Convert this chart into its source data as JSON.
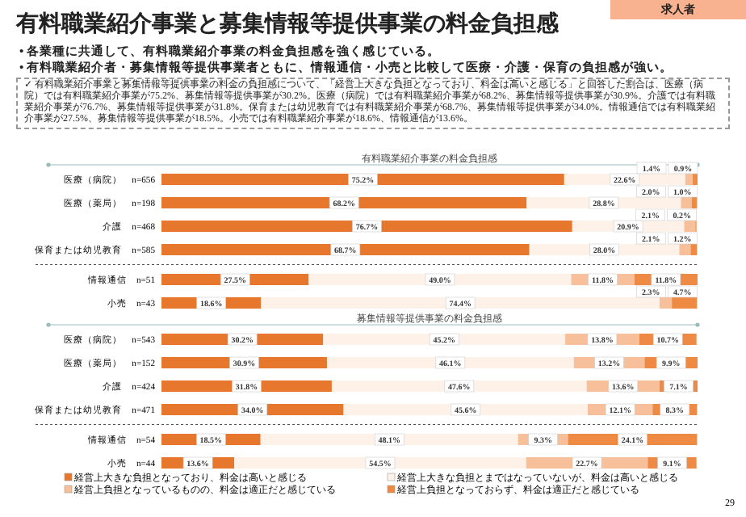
{
  "chart_data": [
    {
      "type": "bar",
      "orientation": "horizontal",
      "stacked": true,
      "title": "有料職業紹介事業の料金負担感",
      "tick_labels": "y",
      "categories": [
        "医療（病院）　n=656",
        "医療（薬局）　n=198",
        "介護　n=468",
        "保育または幼児教育　n=585",
        "情報通信　n=51",
        "小売　n=43"
      ],
      "series": [
        {
          "color": "#e8772e",
          "values": [
            75.2,
            68.2,
            76.7,
            68.7,
            27.5,
            18.6
          ],
          "value_labels": [
            "75.2%",
            "68.2%",
            "76.7%",
            "68.7%",
            "27.5%",
            "18.6%"
          ]
        },
        {
          "color": "#fdf1e8",
          "values": [
            22.6,
            28.8,
            20.9,
            28.0,
            49.0,
            74.4
          ],
          "value_labels": [
            "22.6%",
            "28.8%",
            "20.9%",
            "28.0%",
            "49.0%",
            "74.4%"
          ]
        },
        {
          "color": "#f7c09a",
          "values": [
            1.4,
            2.0,
            2.1,
            2.1,
            11.8,
            2.3
          ],
          "value_labels": [
            "1.4%",
            "2.0%",
            "2.1%",
            "2.1%",
            "11.8%",
            "2.3%"
          ]
        },
        {
          "color": "#ef8a45",
          "values": [
            0.9,
            1.0,
            0.2,
            1.2,
            11.8,
            4.7
          ],
          "value_labels": [
            "0.9%",
            "1.0%",
            "0.2%",
            "1.2%",
            "11.8%",
            "4.7%"
          ]
        }
      ],
      "annotations": [
        "求人者",
        "有料職業紹介事業と募集情報等提供事業の料金負担感",
        "• 各業種に共通して、有料職業紹介事業の料金負担感を強く感じている。",
        "• 有料職業紹介者・募集情報等提供事業者ともに、情報通信・小売と比較して医療・介護・保育の負担感が強い。",
        "✓ 有料職業紹介事業と募集情報等提供事業の料金の負担感について、「経営上大きな負担となっており、料金は高いと感じる」と回答した割合は、医療（病院）では有料職業紹介事業が75.2%、募集情報等提供事業が30.2%。医療（病院）では有料職業紹介事業が68.2%、募集情報等提供事業が30.9%。介護では有料職業紹介事業が76.7%、募集情報等提供事業が31.8%。保育または幼児教育では有料職業紹介事業が68.7%、募集情報等提供事業が34.0%。情報通信では有料職業紹介事業が27.5%、募集情報等提供事業が18.5%。小売では有料職業紹介事業が18.6%、情報通信が13.6%。"
      ]
    },
    {
      "type": "bar",
      "orientation": "horizontal",
      "stacked": true,
      "title": "募集情報等提供事業の料金負担感",
      "tick_labels": "y",
      "legend": "bottom",
      "categories": [
        "医療（病院）　n=543",
        "医療（薬局）　n=152",
        "介護　n=424",
        "保育または幼児教育　n=471",
        "情報通信　n=54",
        "小売　n=44"
      ],
      "series": [
        {
          "name": "経営上大きな負担となっており、料金は高いと感じる",
          "color": "#e8772e",
          "values": [
            30.2,
            30.9,
            31.8,
            34.0,
            18.5,
            13.6
          ],
          "value_labels": [
            "30.2%",
            "30.9%",
            "31.8%",
            "34.0%",
            "18.5%",
            "13.6%"
          ]
        },
        {
          "name": "経営上大きな負担とまではなっていないが、料金は高いと感じる",
          "color": "#fdf1e8",
          "values": [
            45.2,
            46.1,
            47.6,
            45.6,
            48.1,
            54.5
          ],
          "value_labels": [
            "45.2%",
            "46.1%",
            "47.6%",
            "45.6%",
            "48.1%",
            "54.5%"
          ]
        },
        {
          "name": "経営上負担となっているものの、料金は適正だと感じている",
          "color": "#f7c09a",
          "values": [
            13.8,
            13.2,
            13.6,
            12.1,
            9.3,
            22.7
          ],
          "value_labels": [
            "13.8%",
            "13.2%",
            "13.6%",
            "12.1%",
            "9.3%",
            "22.7%"
          ]
        },
        {
          "name": "経営上負担となっておらず、料金は適正だと感じている",
          "color": "#ef8a45",
          "values": [
            10.7,
            9.9,
            7.1,
            8.3,
            24.1,
            9.1
          ],
          "value_labels": [
            "10.7%",
            "9.9%",
            "7.1%",
            "8.3%",
            "24.1%",
            "9.1%"
          ]
        }
      ],
      "annotations": [
        "29"
      ]
    }
  ]
}
